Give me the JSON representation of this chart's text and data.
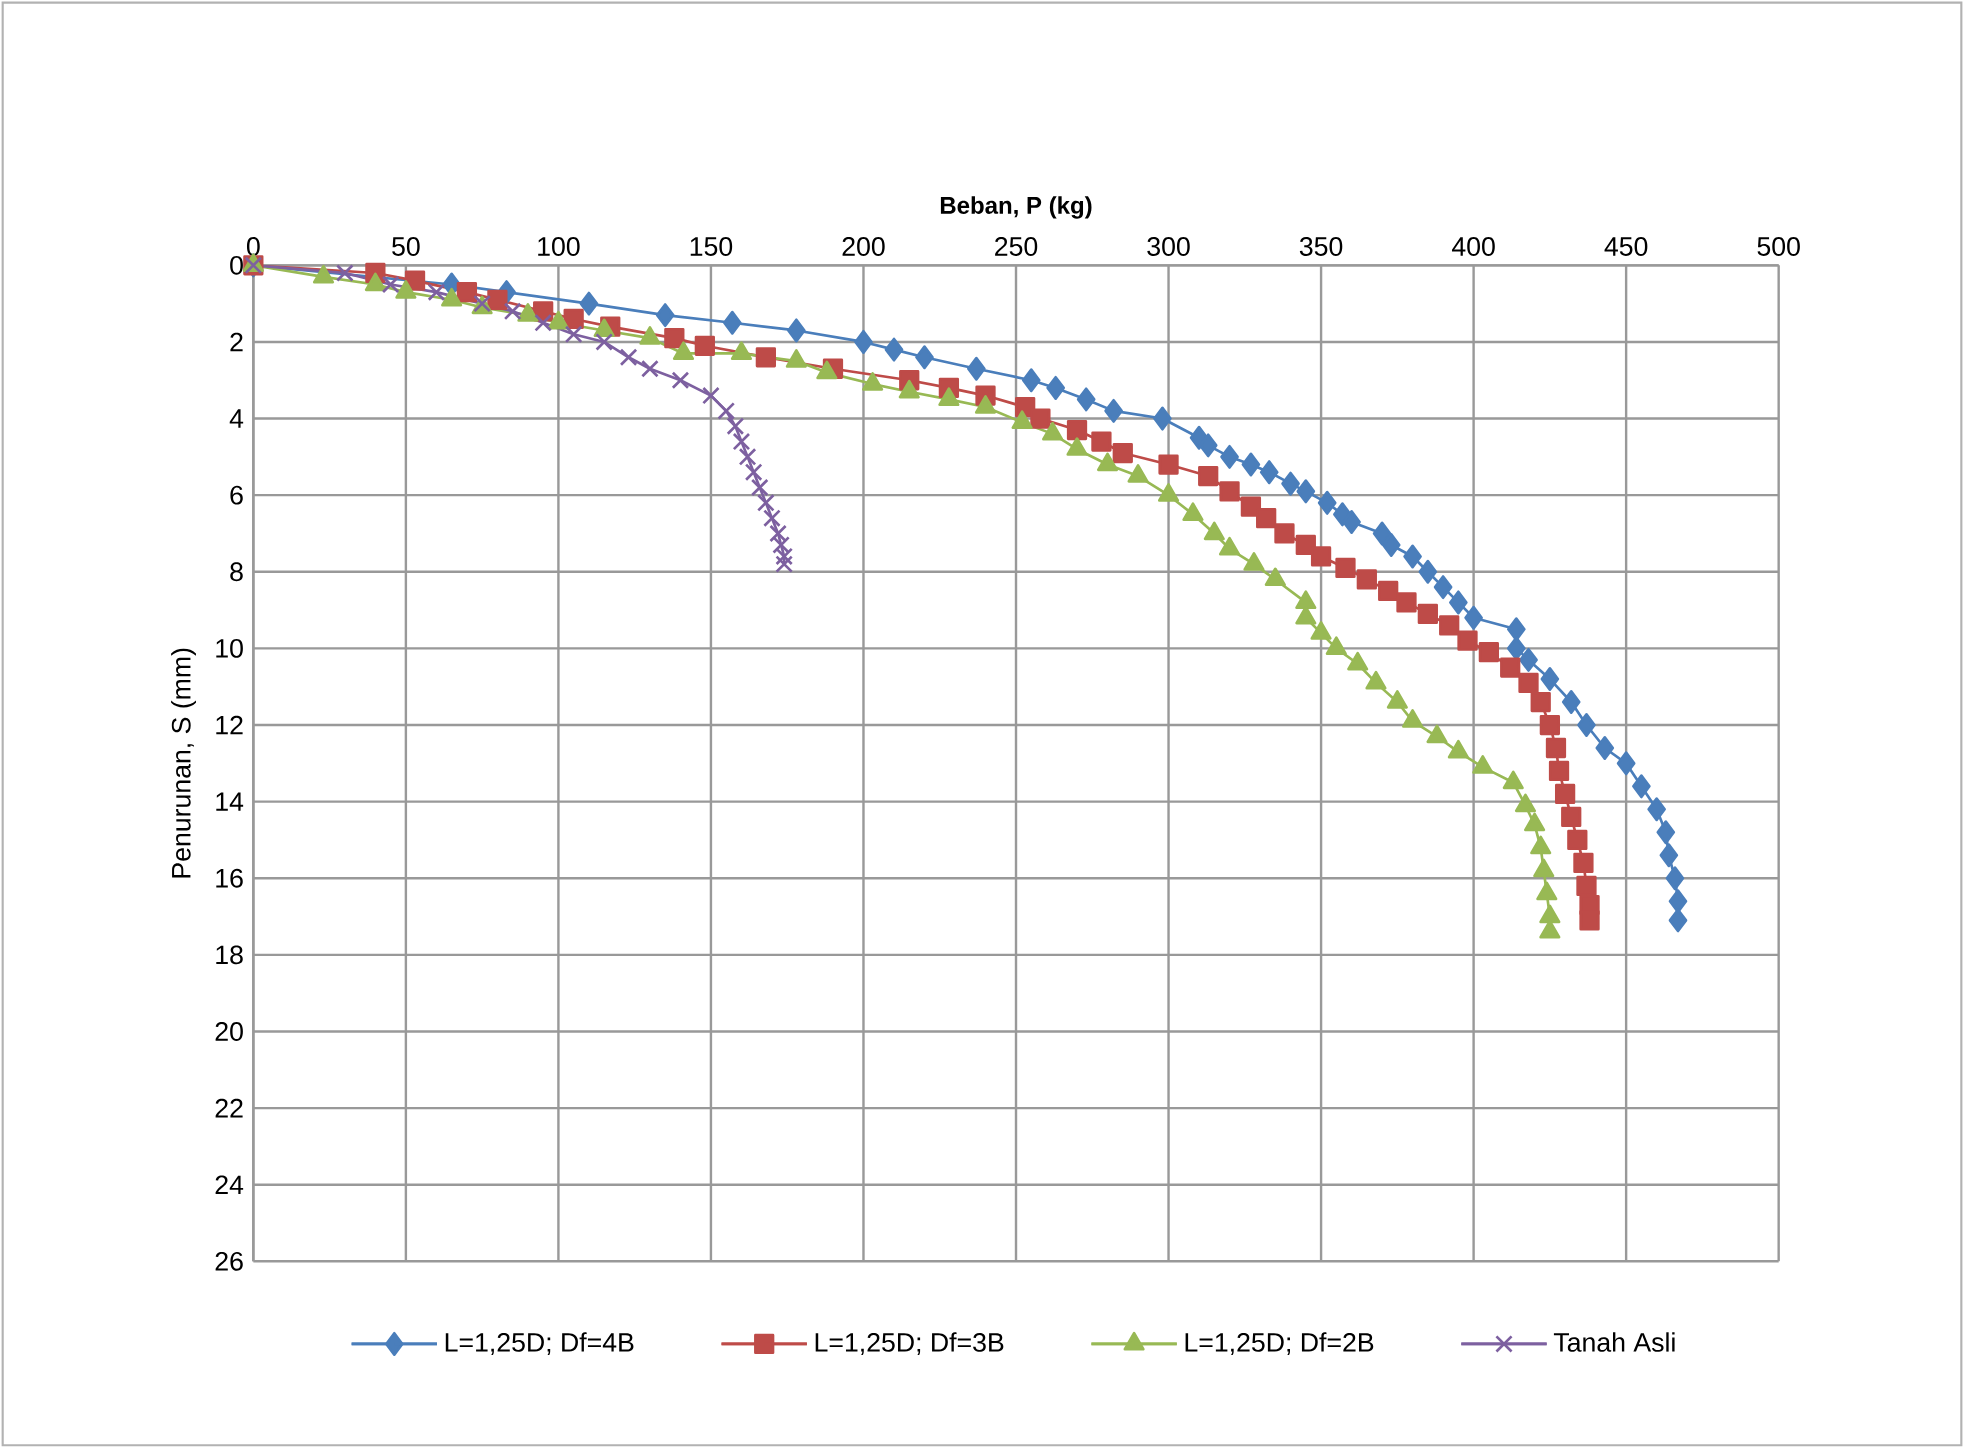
{
  "chart_data": {
    "type": "line",
    "xlabel": "Beban, P (kg)",
    "ylabel": "Penurunan, S (mm)",
    "xlim": [
      0,
      500
    ],
    "xticks": [
      0,
      50,
      100,
      150,
      200,
      250,
      300,
      350,
      400,
      450,
      500
    ],
    "ylim": [
      26,
      0
    ],
    "yticks": [
      0,
      2,
      4,
      6,
      8,
      10,
      12,
      14,
      16,
      18,
      20,
      22,
      24,
      26
    ],
    "grid": true,
    "legend": "bottom",
    "line_style": "solid",
    "series": [
      {
        "name": "L=1,25D; Df=4B",
        "color": "#4a7ebb",
        "marker": "diamond",
        "x": [
          0,
          50,
          65,
          83,
          110,
          135,
          157,
          178,
          200,
          210,
          220,
          237,
          255,
          263,
          273,
          282,
          298,
          310,
          313,
          320,
          327,
          333,
          340,
          345,
          352,
          357,
          360,
          370,
          373,
          380,
          385,
          390,
          395,
          400,
          414,
          414,
          418,
          425,
          432,
          437,
          443,
          450,
          455,
          460,
          463,
          464,
          466,
          467,
          467
        ],
        "values": [
          0,
          null,
          0.5,
          0.7,
          1.0,
          1.3,
          1.5,
          1.7,
          2.0,
          2.2,
          2.4,
          2.7,
          3.0,
          3.2,
          3.5,
          3.8,
          4.0,
          4.5,
          4.7,
          5.0,
          5.2,
          5.4,
          5.7,
          5.9,
          6.2,
          6.5,
          6.7,
          7.0,
          7.3,
          7.6,
          8.0,
          8.4,
          8.8,
          9.2,
          9.5,
          10.0,
          10.3,
          10.8,
          11.4,
          12.0,
          12.6,
          13.0,
          13.6,
          14.2,
          14.8,
          15.4,
          16.0,
          16.6,
          17.1
        ]
      },
      {
        "name": "L=1,25D; Df=3B",
        "color": "#be4b48",
        "marker": "square",
        "x": [
          0,
          40,
          53,
          70,
          80,
          95,
          105,
          117,
          138,
          148,
          168,
          190,
          215,
          228,
          240,
          253,
          258,
          270,
          278,
          285,
          300,
          313,
          320,
          327,
          332,
          338,
          345,
          350,
          358,
          365,
          372,
          378,
          385,
          392,
          398,
          405,
          412,
          418,
          422,
          425,
          427,
          428,
          430,
          432,
          434,
          436,
          437,
          438,
          438
        ],
        "values": [
          0,
          0.2,
          0.4,
          0.7,
          0.9,
          1.2,
          1.4,
          1.6,
          1.9,
          2.1,
          2.4,
          2.7,
          3.0,
          3.2,
          3.4,
          3.7,
          4.0,
          4.3,
          4.6,
          4.9,
          5.2,
          5.5,
          5.9,
          6.3,
          6.6,
          7.0,
          7.3,
          7.6,
          7.9,
          8.2,
          8.5,
          8.8,
          9.1,
          9.4,
          9.8,
          10.1,
          10.5,
          10.9,
          11.4,
          12.0,
          12.6,
          13.2,
          13.8,
          14.4,
          15.0,
          15.6,
          16.2,
          16.7,
          17.1
        ]
      },
      {
        "name": "L=1,25D; Df=2B",
        "color": "#98b954",
        "marker": "triangle",
        "x": [
          0,
          23,
          40,
          50,
          65,
          75,
          90,
          100,
          115,
          130,
          141,
          160,
          178,
          188,
          203,
          215,
          228,
          240,
          252,
          262,
          270,
          280,
          290,
          300,
          308,
          315,
          320,
          328,
          335,
          345,
          345,
          350,
          355,
          362,
          368,
          375,
          380,
          388,
          395,
          403,
          413,
          417,
          420,
          422,
          423,
          424,
          425,
          425
        ],
        "values": [
          0,
          0.3,
          0.5,
          0.7,
          0.9,
          1.1,
          1.3,
          1.5,
          1.7,
          1.9,
          2.3,
          2.3,
          2.5,
          2.8,
          3.1,
          3.3,
          3.5,
          3.7,
          4.1,
          4.4,
          4.8,
          5.2,
          5.5,
          6.0,
          6.5,
          7.0,
          7.4,
          7.8,
          8.2,
          8.8,
          9.2,
          9.6,
          10.0,
          10.4,
          10.9,
          11.4,
          11.9,
          12.3,
          12.7,
          13.1,
          13.5,
          14.1,
          14.6,
          15.2,
          15.8,
          16.4,
          17.0,
          17.4
        ]
      },
      {
        "name": "Tanah Asli",
        "color": "#7d60a0",
        "marker": "cross",
        "x": [
          0,
          30,
          45,
          60,
          75,
          85,
          95,
          105,
          115,
          123,
          130,
          140,
          150,
          155,
          158,
          160,
          162,
          164,
          166,
          168,
          170,
          172,
          173,
          174,
          174
        ],
        "values": [
          0,
          0.2,
          0.5,
          0.7,
          1.0,
          1.2,
          1.5,
          1.8,
          2.0,
          2.4,
          2.7,
          3.0,
          3.4,
          3.8,
          4.2,
          4.6,
          5.0,
          5.4,
          5.8,
          6.2,
          6.6,
          7.0,
          7.3,
          7.6,
          7.8
        ]
      }
    ]
  }
}
